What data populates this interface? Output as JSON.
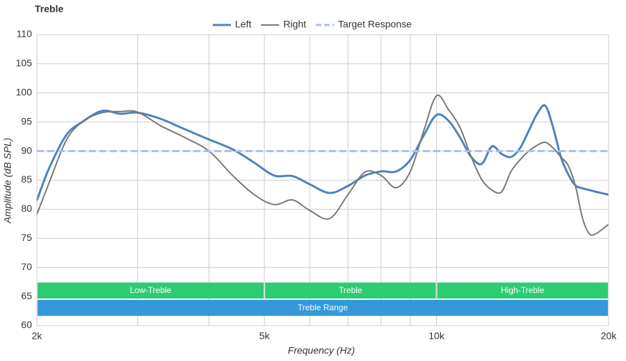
{
  "chart_data": {
    "type": "line",
    "title": "Treble",
    "x_label": "Frequency (Hz)",
    "y_label": "Amplitude (dB SPL)",
    "xscale": "log",
    "grid": true,
    "legend": "top",
    "xlim": [
      2000,
      20000
    ],
    "ylim": [
      60,
      110
    ],
    "xticks": [
      {
        "value": 2000,
        "label": "2k"
      },
      {
        "value": 5000,
        "label": "5k"
      },
      {
        "value": 10000,
        "label": "10k"
      },
      {
        "value": 20000,
        "label": "20k"
      }
    ],
    "xminor_ticks": [
      3000,
      4000,
      6000,
      7000,
      8000,
      9000
    ],
    "yticks": [
      60,
      65,
      70,
      75,
      80,
      85,
      90,
      95,
      100,
      105,
      110
    ],
    "series": [
      {
        "name": "Left",
        "color": "#4f81bd",
        "width": 3,
        "dashed": false,
        "x": [
          2000,
          2100,
          2250,
          2400,
          2600,
          2800,
          3000,
          3300,
          3600,
          4000,
          4400,
          4800,
          5200,
          5600,
          6000,
          6500,
          7000,
          7500,
          8000,
          8500,
          9000,
          9500,
          10000,
          10500,
          11000,
          11500,
          12000,
          12500,
          13000,
          13500,
          14000,
          14500,
          15000,
          15500,
          16000,
          16500,
          17000,
          17500,
          18000,
          18500,
          19000,
          20000
        ],
        "values": [
          81.5,
          87,
          92.7,
          95,
          96.9,
          96.4,
          96.6,
          95.5,
          93.9,
          92,
          90.3,
          88,
          85.8,
          85.7,
          84.3,
          82.8,
          84,
          85.8,
          86.5,
          86.5,
          88.5,
          92.7,
          96.2,
          95.2,
          92.3,
          89,
          87.8,
          90.8,
          89.5,
          89,
          90.5,
          93.5,
          96.4,
          97.8,
          94,
          89,
          86,
          84.1,
          83.6,
          83.3,
          83,
          82.5
        ]
      },
      {
        "name": "Right",
        "color": "#777777",
        "width": 2,
        "dashed": false,
        "x": [
          2000,
          2100,
          2250,
          2400,
          2600,
          2800,
          3000,
          3300,
          3600,
          4000,
          4400,
          4800,
          5200,
          5600,
          6000,
          6500,
          7000,
          7500,
          8000,
          8500,
          9000,
          9500,
          10000,
          10500,
          11000,
          11500,
          12000,
          12500,
          13000,
          13500,
          14000,
          14500,
          15000,
          15500,
          16000,
          16500,
          17000,
          17500,
          18000,
          18500,
          19000,
          20000
        ],
        "values": [
          79.1,
          84.5,
          91.8,
          95,
          96.6,
          96.8,
          96.7,
          94.3,
          92.5,
          90,
          85.8,
          82.5,
          80.8,
          81.6,
          79.8,
          78.4,
          82.5,
          86.4,
          85.8,
          83.7,
          86.5,
          93.5,
          99.5,
          97.1,
          94,
          89,
          85.1,
          83.3,
          83,
          86.5,
          88.5,
          90,
          91,
          91.5,
          90.5,
          89,
          87.5,
          84,
          78.5,
          75.8,
          75.8,
          77.4
        ]
      },
      {
        "name": "Target Response",
        "color": "#a9bdf5",
        "width": 3,
        "dashed": true,
        "x": [
          2000,
          20000
        ],
        "values": [
          90,
          90
        ]
      }
    ],
    "bands": [
      {
        "label": "Low-Treble",
        "start": 2000,
        "end": 5000,
        "color": "#2ecc71",
        "row": 0
      },
      {
        "label": "Treble",
        "start": 5000,
        "end": 10000,
        "color": "#2ecc71",
        "row": 0
      },
      {
        "label": "High-Treble",
        "start": 10000,
        "end": 20000,
        "color": "#2ecc71",
        "row": 0
      },
      {
        "label": "Treble Range",
        "start": 2000,
        "end": 20000,
        "color": "#3498db",
        "row": 1
      }
    ]
  }
}
